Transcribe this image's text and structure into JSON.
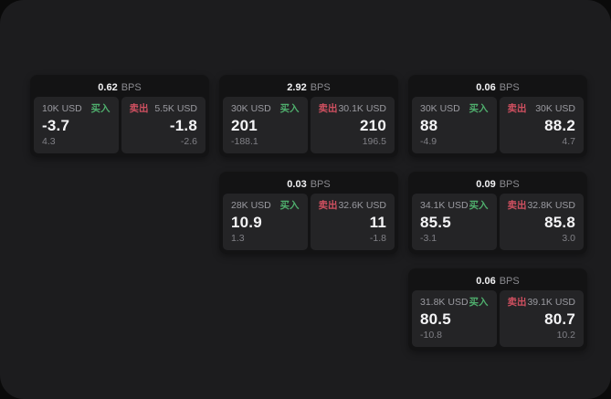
{
  "labels": {
    "bps_unit": "BPS",
    "buy": "买入",
    "sell": "卖出"
  },
  "colors": {
    "screen_bg": "#1c1c1e",
    "card_bg": "#131314",
    "panel_bg": "#242426",
    "buy_green": "#4fae6d",
    "sell_red": "#cf5060",
    "value_white": "#f2f2f4",
    "muted_gray": "#8b8b90"
  },
  "cards": [
    {
      "bps": "0.62",
      "buy": {
        "amount": "10K USD",
        "price": "-3.7",
        "delta": "4.3"
      },
      "sell": {
        "amount": "5.5K USD",
        "price": "-1.8",
        "delta": "-2.6"
      }
    },
    {
      "bps": "2.92",
      "buy": {
        "amount": "30K USD",
        "price": "201",
        "delta": "-188.1"
      },
      "sell": {
        "amount": "30.1K USD",
        "price": "210",
        "delta": "196.5"
      }
    },
    {
      "bps": "0.06",
      "buy": {
        "amount": "30K USD",
        "price": "88",
        "delta": "-4.9"
      },
      "sell": {
        "amount": "30K USD",
        "price": "88.2",
        "delta": "4.7"
      }
    },
    {
      "bps": "0.03",
      "buy": {
        "amount": "28K USD",
        "price": "10.9",
        "delta": "1.3"
      },
      "sell": {
        "amount": "32.6K USD",
        "price": "11",
        "delta": "-1.8"
      }
    },
    {
      "bps": "0.09",
      "buy": {
        "amount": "34.1K USD",
        "price": "85.5",
        "delta": "-3.1"
      },
      "sell": {
        "amount": "32.8K USD",
        "price": "85.8",
        "delta": "3.0"
      }
    },
    {
      "bps": "0.06",
      "buy": {
        "amount": "31.8K USD",
        "price": "80.5",
        "delta": "-10.8"
      },
      "sell": {
        "amount": "39.1K USD",
        "price": "80.7",
        "delta": "10.2"
      }
    }
  ]
}
